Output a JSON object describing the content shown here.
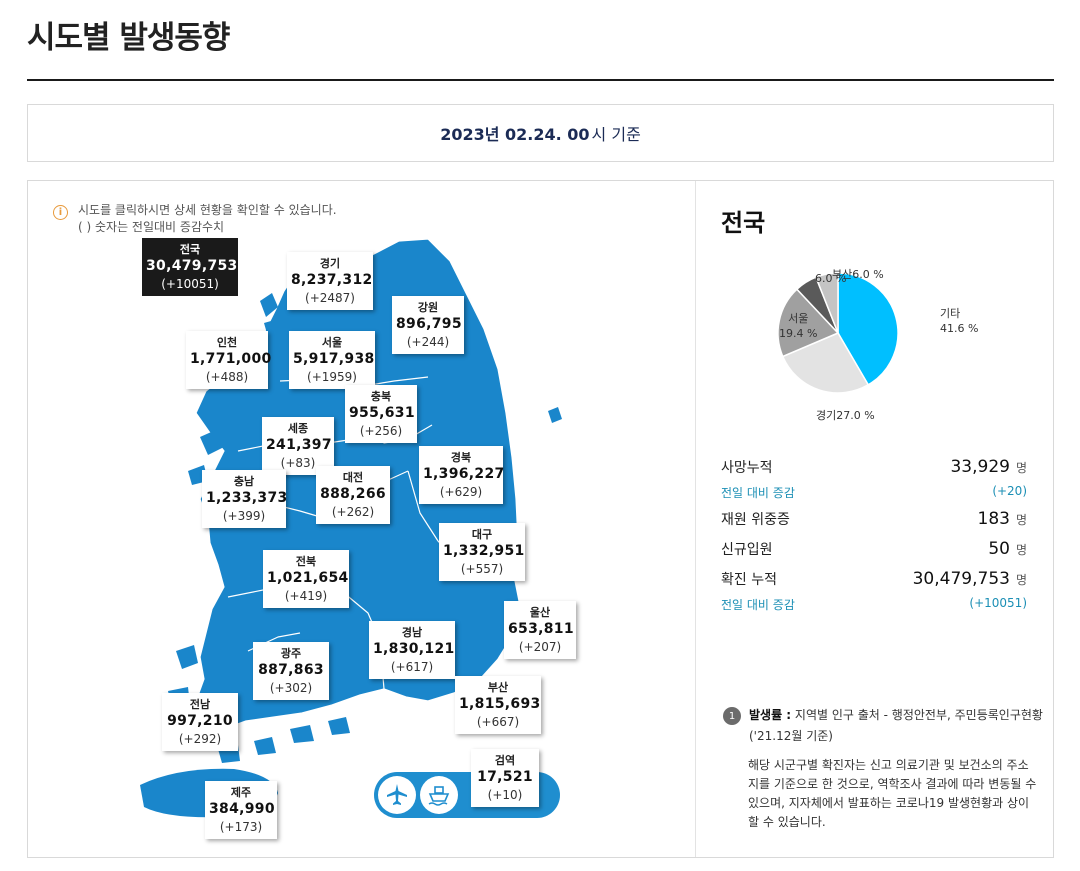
{
  "header": {
    "title": "시도별 발생동향"
  },
  "date": {
    "strong": "2023년 02.24. 00",
    "suffix": "시 기준"
  },
  "info": {
    "line1": "시도를 클릭하시면 상세 현황을 확인할 수 있습니다.",
    "line2": "( ) 숫자는 전일대비 증감수치"
  },
  "regions": {
    "nation": {
      "name": "전국",
      "total": "30,479,753",
      "delta": "(+10051)"
    },
    "gyeonggi": {
      "name": "경기",
      "total": "8,237,312",
      "delta": "(+2487)"
    },
    "gangwon": {
      "name": "강원",
      "total": "896,795",
      "delta": "(+244)"
    },
    "incheon": {
      "name": "인천",
      "total": "1,771,000",
      "delta": "(+488)"
    },
    "seoul": {
      "name": "서울",
      "total": "5,917,938",
      "delta": "(+1959)"
    },
    "chungbuk": {
      "name": "충북",
      "total": "955,631",
      "delta": "(+256)"
    },
    "sejong": {
      "name": "세종",
      "total": "241,397",
      "delta": "(+83)"
    },
    "gyeongbuk": {
      "name": "경북",
      "total": "1,396,227",
      "delta": "(+629)"
    },
    "chungnam": {
      "name": "충남",
      "total": "1,233,373",
      "delta": "(+399)"
    },
    "daejeon": {
      "name": "대전",
      "total": "888,266",
      "delta": "(+262)"
    },
    "daegu": {
      "name": "대구",
      "total": "1,332,951",
      "delta": "(+557)"
    },
    "jeonbuk": {
      "name": "전북",
      "total": "1,021,654",
      "delta": "(+419)"
    },
    "ulsan": {
      "name": "울산",
      "total": "653,811",
      "delta": "(+207)"
    },
    "gyeongnam": {
      "name": "경남",
      "total": "1,830,121",
      "delta": "(+617)"
    },
    "gwangju": {
      "name": "광주",
      "total": "887,863",
      "delta": "(+302)"
    },
    "busan": {
      "name": "부산",
      "total": "1,815,693",
      "delta": "(+667)"
    },
    "jeonnam": {
      "name": "전남",
      "total": "997,210",
      "delta": "(+292)"
    },
    "quarantine": {
      "name": "검역",
      "total": "17,521",
      "delta": "(+10)"
    },
    "jeju": {
      "name": "제주",
      "total": "384,990",
      "delta": "(+173)"
    }
  },
  "transport": {
    "icons": [
      "airplane-icon",
      "ship-icon"
    ]
  },
  "summary": {
    "title": "전국",
    "chart_data": {
      "type": "pie",
      "slices": [
        {
          "label": "기타",
          "value": 41.6,
          "display": "41.6 %",
          "color": "#00bfff"
        },
        {
          "label": "경기",
          "value": 27.0,
          "display": "27.0 %",
          "color": "#e3e3e3"
        },
        {
          "label": "서울",
          "value": 19.4,
          "display": "19.4 %",
          "color": "#a0a0a0"
        },
        {
          "label": "",
          "value": 6.0,
          "display": "6.0 %",
          "color": "#5a5a5a"
        },
        {
          "label": "부산",
          "value": 6.0,
          "display": "6.0 %",
          "color": "#c4c4c4"
        }
      ]
    },
    "stats": {
      "deaths": {
        "label": "사망누적",
        "value": "33,929",
        "unit": "명"
      },
      "deaths_delta": {
        "label": "전일 대비 증감",
        "value": "(+20)"
      },
      "severe": {
        "label": "재원 위중증",
        "value": "183",
        "unit": "명"
      },
      "admissions": {
        "label": "신규입원",
        "value": "50",
        "unit": "명"
      },
      "confirmed": {
        "label": "확진 누적",
        "value": "30,479,753",
        "unit": "명"
      },
      "confirmed_delta": {
        "label": "전일 대비 증감",
        "value": "(+10051)"
      }
    }
  },
  "notes": {
    "num": "1",
    "bold": "발생률 :",
    "text": " 지역별 인구 출처 - 행정안전부, 주민등록인구현황 ('21.12월 기준)",
    "para": "해당 시군구별 확진자는 신고 의료기관 및 보건소의 주소지를 기준으로 한 것으로, 역학조사 결과에 따라 변동될 수 있으며, 지자체에서 발표하는 코로나19 발생현황과 상이할 수 있습니다."
  }
}
